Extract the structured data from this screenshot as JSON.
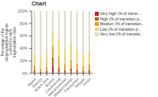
{
  "chart_data": {
    "type": "bar",
    "stacked": true,
    "title": "Chart",
    "ylabel": "Percentage of the biogeographical regions covered by each fragmentation class",
    "categories": [
      "Alpine",
      "Atlantic",
      "Black Sea",
      "Boreal",
      "Continental",
      "Macaronesian",
      "Mediterranean",
      "Pannonian",
      "Steppic",
      "Arctic"
    ],
    "series": [
      {
        "name": "Very high (% of transi...",
        "color": "#b22222",
        "values": [
          1,
          1,
          1,
          12,
          2,
          1,
          2,
          1,
          1,
          1
        ]
      },
      {
        "name": "High (% of transition p...",
        "color": "#cc5500",
        "values": [
          4,
          2,
          3,
          14,
          7,
          4,
          6,
          4,
          3,
          4
        ]
      },
      {
        "name": "Medium (% of transition...",
        "color": "#e8a020",
        "values": [
          8,
          5,
          7,
          18,
          18,
          10,
          14,
          10,
          8,
          10
        ]
      },
      {
        "name": "Low (% of transition p...",
        "color": "#f0d060",
        "values": [
          18,
          18,
          20,
          22,
          28,
          25,
          28,
          22,
          20,
          20
        ]
      },
      {
        "name": "Very low (% of transitio...",
        "color": "#dcdccc",
        "values": [
          69,
          74,
          69,
          34,
          45,
          60,
          50,
          63,
          68,
          65
        ]
      }
    ],
    "ylim": [
      0,
      100
    ],
    "yticks": [
      {
        "value": 0,
        "label": "0%"
      },
      {
        "value": 20,
        "label": "20%"
      },
      {
        "value": 40,
        "label": "40%"
      },
      {
        "value": 60,
        "label": "60%"
      },
      {
        "value": 80,
        "label": "80%"
      },
      {
        "value": 100,
        "label": "100%"
      }
    ],
    "grid": false,
    "legend": "upper right"
  }
}
